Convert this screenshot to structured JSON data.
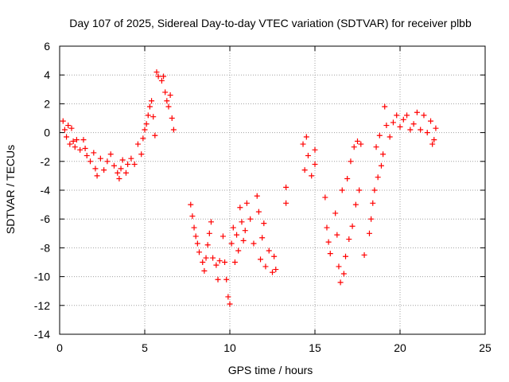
{
  "chart_data": {
    "type": "scatter",
    "title": "Day 107 of 2025, Sidereal Day-to-day VTEC variation (SDTVAR) for receiver plbb",
    "xlabel": "GPS time / hours",
    "ylabel": "SDTVAR / TECUs",
    "xlim": [
      0,
      25
    ],
    "ylim": [
      -14,
      6
    ],
    "xticks": [
      0,
      5,
      10,
      15,
      20,
      25
    ],
    "yticks": [
      -14,
      -12,
      -10,
      -8,
      -6,
      -4,
      -2,
      0,
      2,
      4,
      6
    ],
    "grid": true,
    "marker": "+",
    "marker_color": "#ff0000",
    "series": [
      {
        "name": "SDTVAR",
        "points": [
          [
            0.2,
            0.8
          ],
          [
            0.3,
            0.2
          ],
          [
            0.4,
            -0.3
          ],
          [
            0.5,
            0.5
          ],
          [
            0.6,
            -0.8
          ],
          [
            0.7,
            0.3
          ],
          [
            0.8,
            -0.6
          ],
          [
            0.9,
            -1.0
          ],
          [
            1.0,
            -0.5
          ],
          [
            1.2,
            -1.2
          ],
          [
            1.4,
            -0.5
          ],
          [
            1.5,
            -1.1
          ],
          [
            1.6,
            -1.6
          ],
          [
            1.8,
            -2.0
          ],
          [
            2.0,
            -1.4
          ],
          [
            2.1,
            -2.5
          ],
          [
            2.2,
            -3.0
          ],
          [
            2.4,
            -1.8
          ],
          [
            2.6,
            -2.6
          ],
          [
            2.8,
            -2.0
          ],
          [
            3.0,
            -1.5
          ],
          [
            3.2,
            -2.3
          ],
          [
            3.4,
            -2.8
          ],
          [
            3.5,
            -3.2
          ],
          [
            3.6,
            -2.5
          ],
          [
            3.7,
            -1.9
          ],
          [
            3.9,
            -2.8
          ],
          [
            4.0,
            -2.2
          ],
          [
            4.2,
            -1.8
          ],
          [
            4.4,
            -2.2
          ],
          [
            4.6,
            -0.8
          ],
          [
            4.8,
            -1.5
          ],
          [
            4.9,
            -0.4
          ],
          [
            5.0,
            0.2
          ],
          [
            5.1,
            0.6
          ],
          [
            5.2,
            1.2
          ],
          [
            5.3,
            1.8
          ],
          [
            5.4,
            2.2
          ],
          [
            5.5,
            1.1
          ],
          [
            5.6,
            -0.2
          ],
          [
            5.7,
            4.2
          ],
          [
            5.8,
            3.9
          ],
          [
            6.0,
            3.6
          ],
          [
            6.1,
            3.9
          ],
          [
            6.2,
            2.8
          ],
          [
            6.3,
            2.2
          ],
          [
            6.4,
            1.8
          ],
          [
            6.5,
            2.6
          ],
          [
            6.6,
            1.0
          ],
          [
            6.7,
            0.2
          ],
          [
            7.7,
            -5.0
          ],
          [
            7.8,
            -5.8
          ],
          [
            7.9,
            -6.6
          ],
          [
            8.0,
            -7.2
          ],
          [
            8.1,
            -7.7
          ],
          [
            8.2,
            -8.3
          ],
          [
            8.4,
            -9.0
          ],
          [
            8.5,
            -9.6
          ],
          [
            8.6,
            -8.7
          ],
          [
            8.7,
            -7.8
          ],
          [
            8.8,
            -7.0
          ],
          [
            8.9,
            -6.2
          ],
          [
            9.0,
            -8.7
          ],
          [
            9.2,
            -9.2
          ],
          [
            9.3,
            -10.2
          ],
          [
            9.4,
            -8.9
          ],
          [
            9.6,
            -7.2
          ],
          [
            9.7,
            -9.0
          ],
          [
            9.8,
            -10.2
          ],
          [
            9.9,
            -11.4
          ],
          [
            10.0,
            -11.9
          ],
          [
            10.1,
            -7.7
          ],
          [
            10.2,
            -6.6
          ],
          [
            10.3,
            -9.0
          ],
          [
            10.4,
            -7.1
          ],
          [
            10.5,
            -8.2
          ],
          [
            10.6,
            -5.2
          ],
          [
            10.7,
            -6.2
          ],
          [
            10.8,
            -7.5
          ],
          [
            10.9,
            -6.8
          ],
          [
            11.0,
            -4.9
          ],
          [
            11.2,
            -6.0
          ],
          [
            11.4,
            -7.7
          ],
          [
            11.6,
            -4.4
          ],
          [
            11.7,
            -5.5
          ],
          [
            11.8,
            -8.8
          ],
          [
            11.9,
            -7.3
          ],
          [
            12.0,
            -6.3
          ],
          [
            12.1,
            -9.3
          ],
          [
            12.3,
            -8.2
          ],
          [
            12.5,
            -9.7
          ],
          [
            12.6,
            -8.6
          ],
          [
            12.7,
            -9.5
          ],
          [
            13.3,
            -3.8
          ],
          [
            13.3,
            -4.9
          ],
          [
            14.3,
            -0.8
          ],
          [
            14.5,
            -0.3
          ],
          [
            14.6,
            -1.6
          ],
          [
            14.4,
            -2.6
          ],
          [
            14.8,
            -3.0
          ],
          [
            15.0,
            -2.2
          ],
          [
            15.0,
            -1.2
          ],
          [
            15.6,
            -4.5
          ],
          [
            15.7,
            -6.6
          ],
          [
            15.8,
            -7.6
          ],
          [
            15.9,
            -8.4
          ],
          [
            16.2,
            -5.6
          ],
          [
            16.3,
            -7.1
          ],
          [
            16.4,
            -9.3
          ],
          [
            16.5,
            -10.4
          ],
          [
            16.6,
            -4.0
          ],
          [
            16.7,
            -9.8
          ],
          [
            16.8,
            -8.6
          ],
          [
            16.9,
            -3.2
          ],
          [
            17.0,
            -7.4
          ],
          [
            17.1,
            -2.0
          ],
          [
            17.2,
            -6.5
          ],
          [
            17.3,
            -1.0
          ],
          [
            17.4,
            -5.0
          ],
          [
            17.5,
            -0.6
          ],
          [
            17.6,
            -4.0
          ],
          [
            17.7,
            -0.8
          ],
          [
            17.9,
            -8.5
          ],
          [
            18.2,
            -7.0
          ],
          [
            18.3,
            -6.0
          ],
          [
            18.4,
            -4.9
          ],
          [
            18.5,
            -4.0
          ],
          [
            18.6,
            -1.0
          ],
          [
            18.7,
            -3.1
          ],
          [
            18.8,
            -0.2
          ],
          [
            18.9,
            -2.3
          ],
          [
            19.0,
            -1.5
          ],
          [
            19.1,
            1.8
          ],
          [
            19.2,
            0.5
          ],
          [
            19.4,
            -0.3
          ],
          [
            19.6,
            0.7
          ],
          [
            19.8,
            1.2
          ],
          [
            20.0,
            0.4
          ],
          [
            20.2,
            0.9
          ],
          [
            20.4,
            1.2
          ],
          [
            20.6,
            0.2
          ],
          [
            20.8,
            0.6
          ],
          [
            21.0,
            1.4
          ],
          [
            21.2,
            0.2
          ],
          [
            21.4,
            1.2
          ],
          [
            21.6,
            0.0
          ],
          [
            21.8,
            0.8
          ],
          [
            22.0,
            -0.5
          ],
          [
            22.1,
            0.3
          ],
          [
            21.9,
            -0.8
          ]
        ]
      }
    ]
  }
}
